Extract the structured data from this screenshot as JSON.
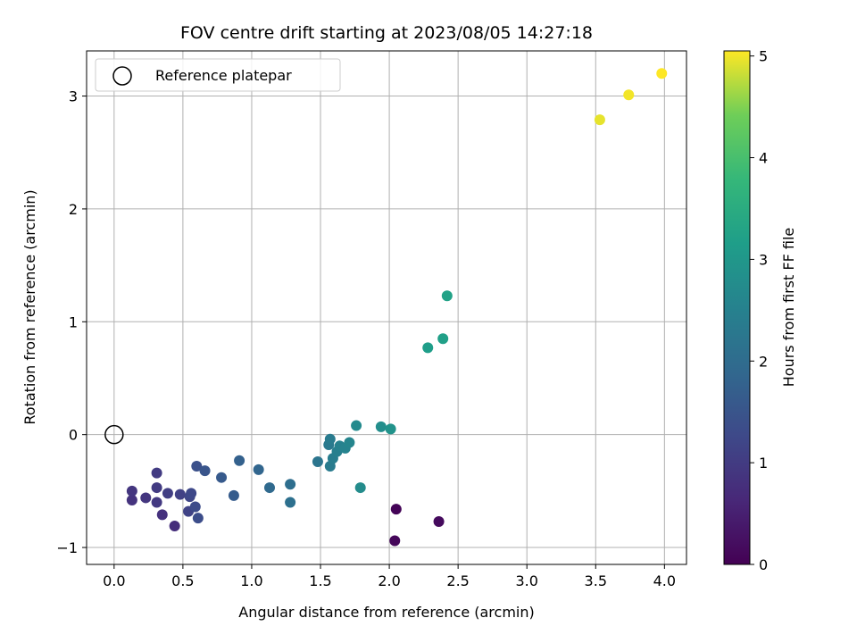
{
  "chart_data": {
    "type": "scatter",
    "title": "FOV centre drift starting at 2023/08/05 14:27:18",
    "xlabel": "Angular distance from reference (arcmin)",
    "ylabel": "Rotation from reference (arcmin)",
    "xlim": [
      -0.2,
      4.16
    ],
    "ylim": [
      -1.15,
      3.4
    ],
    "xticks": [
      "0.0",
      "0.5",
      "1.0",
      "1.5",
      "2.0",
      "2.5",
      "3.0",
      "3.5",
      "4.0"
    ],
    "yticks": [
      "−1",
      "0",
      "1",
      "2",
      "3"
    ],
    "grid": true,
    "legend": {
      "placement": "top-left",
      "entries": [
        "Reference platepar"
      ]
    },
    "reference_point": {
      "name": "Reference platepar",
      "x": 0.0,
      "y": 0.0
    },
    "colorbar": {
      "label": "Hours from first FF file",
      "range": [
        0,
        5.05
      ],
      "ticks": [
        "0",
        "1",
        "2",
        "3",
        "4",
        "5"
      ],
      "colormap": "viridis"
    },
    "points": [
      {
        "x": 2.05,
        "y": -0.66,
        "c": 0.05
      },
      {
        "x": 2.04,
        "y": -0.94,
        "c": 0.1
      },
      {
        "x": 2.36,
        "y": -0.77,
        "c": 0.15
      },
      {
        "x": 0.44,
        "y": -0.81,
        "c": 0.75
      },
      {
        "x": 0.35,
        "y": -0.71,
        "c": 0.8
      },
      {
        "x": 0.13,
        "y": -0.58,
        "c": 0.85
      },
      {
        "x": 0.13,
        "y": -0.5,
        "c": 0.9
      },
      {
        "x": 0.23,
        "y": -0.56,
        "c": 0.9
      },
      {
        "x": 0.31,
        "y": -0.6,
        "c": 0.95
      },
      {
        "x": 0.31,
        "y": -0.47,
        "c": 1.0
      },
      {
        "x": 0.31,
        "y": -0.34,
        "c": 1.0
      },
      {
        "x": 0.39,
        "y": -0.52,
        "c": 1.05
      },
      {
        "x": 0.48,
        "y": -0.53,
        "c": 1.1
      },
      {
        "x": 0.54,
        "y": -0.68,
        "c": 1.15
      },
      {
        "x": 0.55,
        "y": -0.55,
        "c": 1.2
      },
      {
        "x": 0.56,
        "y": -0.52,
        "c": 1.25
      },
      {
        "x": 0.59,
        "y": -0.64,
        "c": 1.3
      },
      {
        "x": 0.61,
        "y": -0.74,
        "c": 1.35
      },
      {
        "x": 0.6,
        "y": -0.28,
        "c": 1.4
      },
      {
        "x": 0.66,
        "y": -0.32,
        "c": 1.5
      },
      {
        "x": 0.78,
        "y": -0.38,
        "c": 1.6
      },
      {
        "x": 0.87,
        "y": -0.54,
        "c": 1.65
      },
      {
        "x": 0.91,
        "y": -0.23,
        "c": 1.75
      },
      {
        "x": 1.05,
        "y": -0.31,
        "c": 1.85
      },
      {
        "x": 1.13,
        "y": -0.47,
        "c": 1.95
      },
      {
        "x": 1.28,
        "y": -0.44,
        "c": 2.05
      },
      {
        "x": 1.28,
        "y": -0.6,
        "c": 2.1
      },
      {
        "x": 1.48,
        "y": -0.24,
        "c": 2.2
      },
      {
        "x": 1.56,
        "y": -0.09,
        "c": 2.3
      },
      {
        "x": 1.57,
        "y": -0.04,
        "c": 2.35
      },
      {
        "x": 1.57,
        "y": -0.28,
        "c": 2.35
      },
      {
        "x": 1.59,
        "y": -0.21,
        "c": 2.4
      },
      {
        "x": 1.62,
        "y": -0.15,
        "c": 2.45
      },
      {
        "x": 1.64,
        "y": -0.1,
        "c": 2.5
      },
      {
        "x": 1.68,
        "y": -0.12,
        "c": 2.55
      },
      {
        "x": 1.71,
        "y": -0.07,
        "c": 2.6
      },
      {
        "x": 1.76,
        "y": 0.08,
        "c": 2.7
      },
      {
        "x": 1.79,
        "y": -0.47,
        "c": 2.75
      },
      {
        "x": 1.94,
        "y": 0.07,
        "c": 2.8
      },
      {
        "x": 2.01,
        "y": 0.05,
        "c": 2.9
      },
      {
        "x": 2.28,
        "y": 0.77,
        "c": 3.15
      },
      {
        "x": 2.39,
        "y": 0.85,
        "c": 3.2
      },
      {
        "x": 2.42,
        "y": 1.23,
        "c": 3.25
      },
      {
        "x": 3.53,
        "y": 2.79,
        "c": 4.95
      },
      {
        "x": 3.74,
        "y": 3.01,
        "c": 5.0
      },
      {
        "x": 3.98,
        "y": 3.2,
        "c": 5.05
      }
    ]
  }
}
